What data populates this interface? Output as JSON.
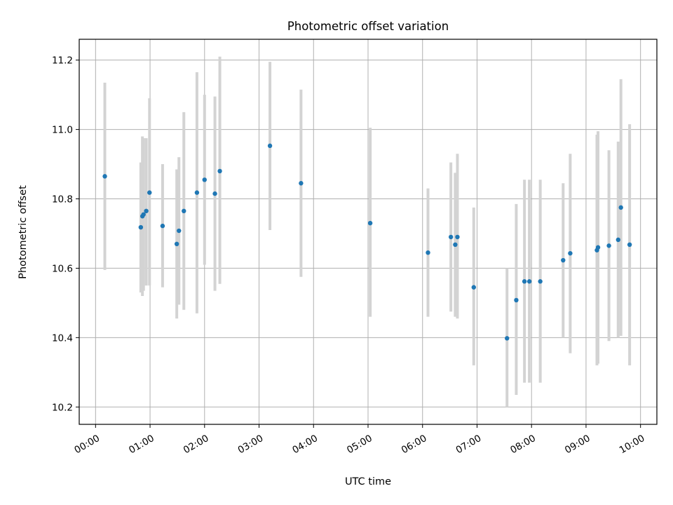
{
  "chart_data": {
    "type": "scatter",
    "title": "Photometric offset variation",
    "xlabel": "UTC time",
    "ylabel": "Photometric offset",
    "x_unit": "hours UTC",
    "xlim": [
      -0.3,
      10.3
    ],
    "ylim": [
      10.15,
      11.26
    ],
    "grid": true,
    "x_ticks": [
      {
        "value": 0,
        "label": "00:00"
      },
      {
        "value": 1,
        "label": "01:00"
      },
      {
        "value": 2,
        "label": "02:00"
      },
      {
        "value": 3,
        "label": "03:00"
      },
      {
        "value": 4,
        "label": "04:00"
      },
      {
        "value": 5,
        "label": "05:00"
      },
      {
        "value": 6,
        "label": "06:00"
      },
      {
        "value": 7,
        "label": "07:00"
      },
      {
        "value": 8,
        "label": "08:00"
      },
      {
        "value": 9,
        "label": "09:00"
      },
      {
        "value": 10,
        "label": "10:00"
      }
    ],
    "y_ticks": [
      {
        "value": 10.2,
        "label": "10.2"
      },
      {
        "value": 10.4,
        "label": "10.4"
      },
      {
        "value": 10.6,
        "label": "10.6"
      },
      {
        "value": 10.8,
        "label": "10.8"
      },
      {
        "value": 11.0,
        "label": "11.0"
      },
      {
        "value": 11.2,
        "label": "11.2"
      }
    ],
    "colors": {
      "point": "#1f77b4",
      "errorbar": "#d3d3d3",
      "grid": "#b0b0b0"
    },
    "points": [
      {
        "x": 0.17,
        "y": 10.865,
        "ylo": 10.595,
        "yhi": 11.135
      },
      {
        "x": 0.83,
        "y": 10.718,
        "ylo": 10.53,
        "yhi": 10.905
      },
      {
        "x": 0.86,
        "y": 10.75,
        "ylo": 10.52,
        "yhi": 10.98
      },
      {
        "x": 0.88,
        "y": 10.755,
        "ylo": 10.535,
        "yhi": 10.975
      },
      {
        "x": 0.93,
        "y": 10.765,
        "ylo": 10.55,
        "yhi": 10.975
      },
      {
        "x": 0.99,
        "y": 10.818,
        "ylo": 10.55,
        "yhi": 11.09
      },
      {
        "x": 1.23,
        "y": 10.722,
        "ylo": 10.545,
        "yhi": 10.9
      },
      {
        "x": 1.49,
        "y": 10.67,
        "ylo": 10.455,
        "yhi": 10.885
      },
      {
        "x": 1.53,
        "y": 10.708,
        "ylo": 10.495,
        "yhi": 10.92
      },
      {
        "x": 1.62,
        "y": 10.765,
        "ylo": 10.48,
        "yhi": 11.05
      },
      {
        "x": 1.86,
        "y": 10.818,
        "ylo": 10.47,
        "yhi": 11.165
      },
      {
        "x": 2.0,
        "y": 10.855,
        "ylo": 10.61,
        "yhi": 11.1
      },
      {
        "x": 2.19,
        "y": 10.815,
        "ylo": 10.535,
        "yhi": 11.095
      },
      {
        "x": 2.28,
        "y": 10.88,
        "ylo": 10.555,
        "yhi": 11.21
      },
      {
        "x": 3.2,
        "y": 10.953,
        "ylo": 10.71,
        "yhi": 11.195
      },
      {
        "x": 3.77,
        "y": 10.845,
        "ylo": 10.575,
        "yhi": 11.115
      },
      {
        "x": 5.04,
        "y": 10.73,
        "ylo": 10.46,
        "yhi": 11.005
      },
      {
        "x": 6.1,
        "y": 10.645,
        "ylo": 10.46,
        "yhi": 10.83
      },
      {
        "x": 6.52,
        "y": 10.69,
        "ylo": 10.475,
        "yhi": 10.905
      },
      {
        "x": 6.6,
        "y": 10.668,
        "ylo": 10.46,
        "yhi": 10.875
      },
      {
        "x": 6.64,
        "y": 10.69,
        "ylo": 10.455,
        "yhi": 10.93
      },
      {
        "x": 6.94,
        "y": 10.545,
        "ylo": 10.32,
        "yhi": 10.775
      },
      {
        "x": 7.55,
        "y": 10.398,
        "ylo": 10.2,
        "yhi": 10.6
      },
      {
        "x": 7.72,
        "y": 10.508,
        "ylo": 10.235,
        "yhi": 10.785
      },
      {
        "x": 7.87,
        "y": 10.562,
        "ylo": 10.27,
        "yhi": 10.855
      },
      {
        "x": 7.96,
        "y": 10.562,
        "ylo": 10.27,
        "yhi": 10.855
      },
      {
        "x": 8.16,
        "y": 10.562,
        "ylo": 10.27,
        "yhi": 10.855
      },
      {
        "x": 8.58,
        "y": 10.623,
        "ylo": 10.4,
        "yhi": 10.845
      },
      {
        "x": 8.71,
        "y": 10.643,
        "ylo": 10.355,
        "yhi": 10.93
      },
      {
        "x": 9.2,
        "y": 10.652,
        "ylo": 10.32,
        "yhi": 10.985
      },
      {
        "x": 9.22,
        "y": 10.66,
        "ylo": 10.325,
        "yhi": 10.995
      },
      {
        "x": 9.42,
        "y": 10.665,
        "ylo": 10.39,
        "yhi": 10.94
      },
      {
        "x": 9.59,
        "y": 10.682,
        "ylo": 10.4,
        "yhi": 10.965
      },
      {
        "x": 9.64,
        "y": 10.775,
        "ylo": 10.405,
        "yhi": 11.145
      },
      {
        "x": 9.8,
        "y": 10.668,
        "ylo": 10.32,
        "yhi": 11.015
      }
    ]
  }
}
